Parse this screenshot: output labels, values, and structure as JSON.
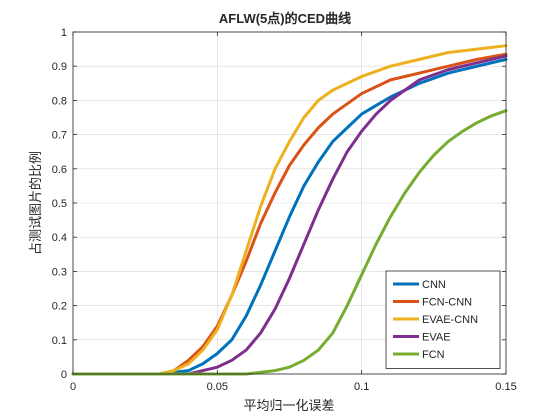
{
  "chart_data": {
    "type": "line",
    "title": "AFLW(5点)的CED曲线",
    "xlabel": "平均归一化误差",
    "ylabel": "占测试图片的比例",
    "xlim": [
      0,
      0.15
    ],
    "ylim": [
      0,
      1
    ],
    "xticks": [
      0,
      0.05,
      0.1,
      0.15
    ],
    "xtick_labels": [
      "0",
      "0.05",
      "0.1",
      "0.15"
    ],
    "yticks": [
      0,
      0.1,
      0.2,
      0.3,
      0.4,
      0.5,
      0.6,
      0.7,
      0.8,
      0.9,
      1
    ],
    "ytick_labels": [
      "0",
      "0.1",
      "0.2",
      "0.3",
      "0.4",
      "0.5",
      "0.6",
      "0.7",
      "0.8",
      "0.9",
      "1"
    ],
    "grid": true,
    "legend_position": "bottom-right",
    "series": [
      {
        "name": "CNN",
        "color": "#0072BD",
        "x": [
          0,
          0.03,
          0.04,
          0.045,
          0.05,
          0.055,
          0.06,
          0.065,
          0.07,
          0.075,
          0.08,
          0.085,
          0.09,
          0.095,
          0.1,
          0.11,
          0.12,
          0.13,
          0.14,
          0.15
        ],
        "y": [
          0,
          0,
          0.01,
          0.03,
          0.06,
          0.1,
          0.17,
          0.26,
          0.36,
          0.46,
          0.55,
          0.62,
          0.68,
          0.72,
          0.76,
          0.81,
          0.85,
          0.88,
          0.9,
          0.92
        ]
      },
      {
        "name": "FCN-CNN",
        "color": "#D95319",
        "x": [
          0,
          0.03,
          0.035,
          0.04,
          0.045,
          0.05,
          0.055,
          0.06,
          0.065,
          0.07,
          0.075,
          0.08,
          0.085,
          0.09,
          0.095,
          0.1,
          0.11,
          0.12,
          0.13,
          0.14,
          0.15
        ],
        "y": [
          0,
          0,
          0.01,
          0.04,
          0.08,
          0.14,
          0.23,
          0.33,
          0.44,
          0.53,
          0.61,
          0.67,
          0.72,
          0.76,
          0.79,
          0.82,
          0.86,
          0.88,
          0.9,
          0.92,
          0.935
        ]
      },
      {
        "name": "EVAE-CNN",
        "color": "#EDB120",
        "x": [
          0,
          0.03,
          0.035,
          0.04,
          0.045,
          0.05,
          0.055,
          0.06,
          0.065,
          0.07,
          0.075,
          0.08,
          0.085,
          0.09,
          0.1,
          0.11,
          0.12,
          0.13,
          0.14,
          0.15
        ],
        "y": [
          0,
          0,
          0.01,
          0.03,
          0.07,
          0.13,
          0.23,
          0.36,
          0.49,
          0.6,
          0.68,
          0.75,
          0.8,
          0.83,
          0.87,
          0.9,
          0.92,
          0.94,
          0.95,
          0.96
        ]
      },
      {
        "name": "EVAE",
        "color": "#7E2F8E",
        "x": [
          0,
          0.04,
          0.045,
          0.05,
          0.055,
          0.06,
          0.065,
          0.07,
          0.075,
          0.08,
          0.085,
          0.09,
          0.095,
          0.1,
          0.105,
          0.11,
          0.12,
          0.13,
          0.14,
          0.15
        ],
        "y": [
          0,
          0,
          0.01,
          0.02,
          0.04,
          0.07,
          0.12,
          0.19,
          0.28,
          0.38,
          0.48,
          0.57,
          0.65,
          0.71,
          0.76,
          0.8,
          0.86,
          0.89,
          0.91,
          0.93
        ]
      },
      {
        "name": "FCN",
        "color": "#77AC30",
        "x": [
          0,
          0.06,
          0.065,
          0.07,
          0.075,
          0.08,
          0.085,
          0.09,
          0.095,
          0.1,
          0.105,
          0.11,
          0.115,
          0.12,
          0.125,
          0.13,
          0.135,
          0.14,
          0.145,
          0.15
        ],
        "y": [
          0,
          0,
          0.005,
          0.01,
          0.02,
          0.04,
          0.07,
          0.12,
          0.2,
          0.29,
          0.38,
          0.46,
          0.53,
          0.59,
          0.64,
          0.68,
          0.71,
          0.735,
          0.755,
          0.77
        ]
      }
    ]
  }
}
